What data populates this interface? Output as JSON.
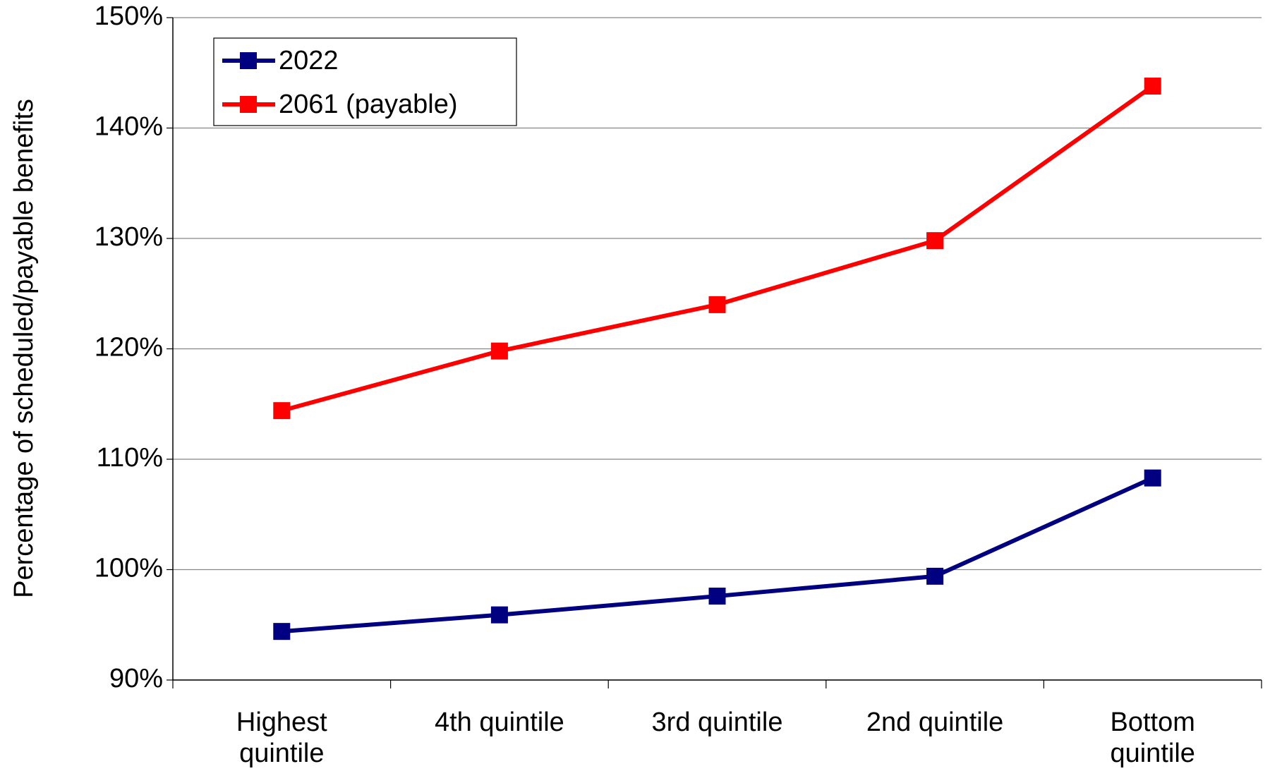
{
  "chart_data": {
    "type": "line",
    "ylabel": "Percentage of scheduled/payable benefits",
    "categories": [
      "Highest quintile",
      "4th quintile",
      "3rd quintile",
      "2nd quintile",
      "Bottom quintile"
    ],
    "series": [
      {
        "name": "2022",
        "color": "#000080",
        "values": [
          94.4,
          95.9,
          97.6,
          99.4,
          108.3
        ]
      },
      {
        "name": "2061 (payable)",
        "color": "#ff0000",
        "values": [
          114.4,
          119.8,
          124.0,
          129.8,
          143.8
        ]
      }
    ],
    "ylim": [
      90,
      150
    ],
    "yticks": [
      {
        "value": 90,
        "label": "90%"
      },
      {
        "value": 100,
        "label": "100%"
      },
      {
        "value": 110,
        "label": "110%"
      },
      {
        "value": 120,
        "label": "120%"
      },
      {
        "value": 130,
        "label": "130%"
      },
      {
        "value": 140,
        "label": "140%"
      },
      {
        "value": 150,
        "label": "150%"
      }
    ],
    "grid": true,
    "legend": "upper left"
  }
}
